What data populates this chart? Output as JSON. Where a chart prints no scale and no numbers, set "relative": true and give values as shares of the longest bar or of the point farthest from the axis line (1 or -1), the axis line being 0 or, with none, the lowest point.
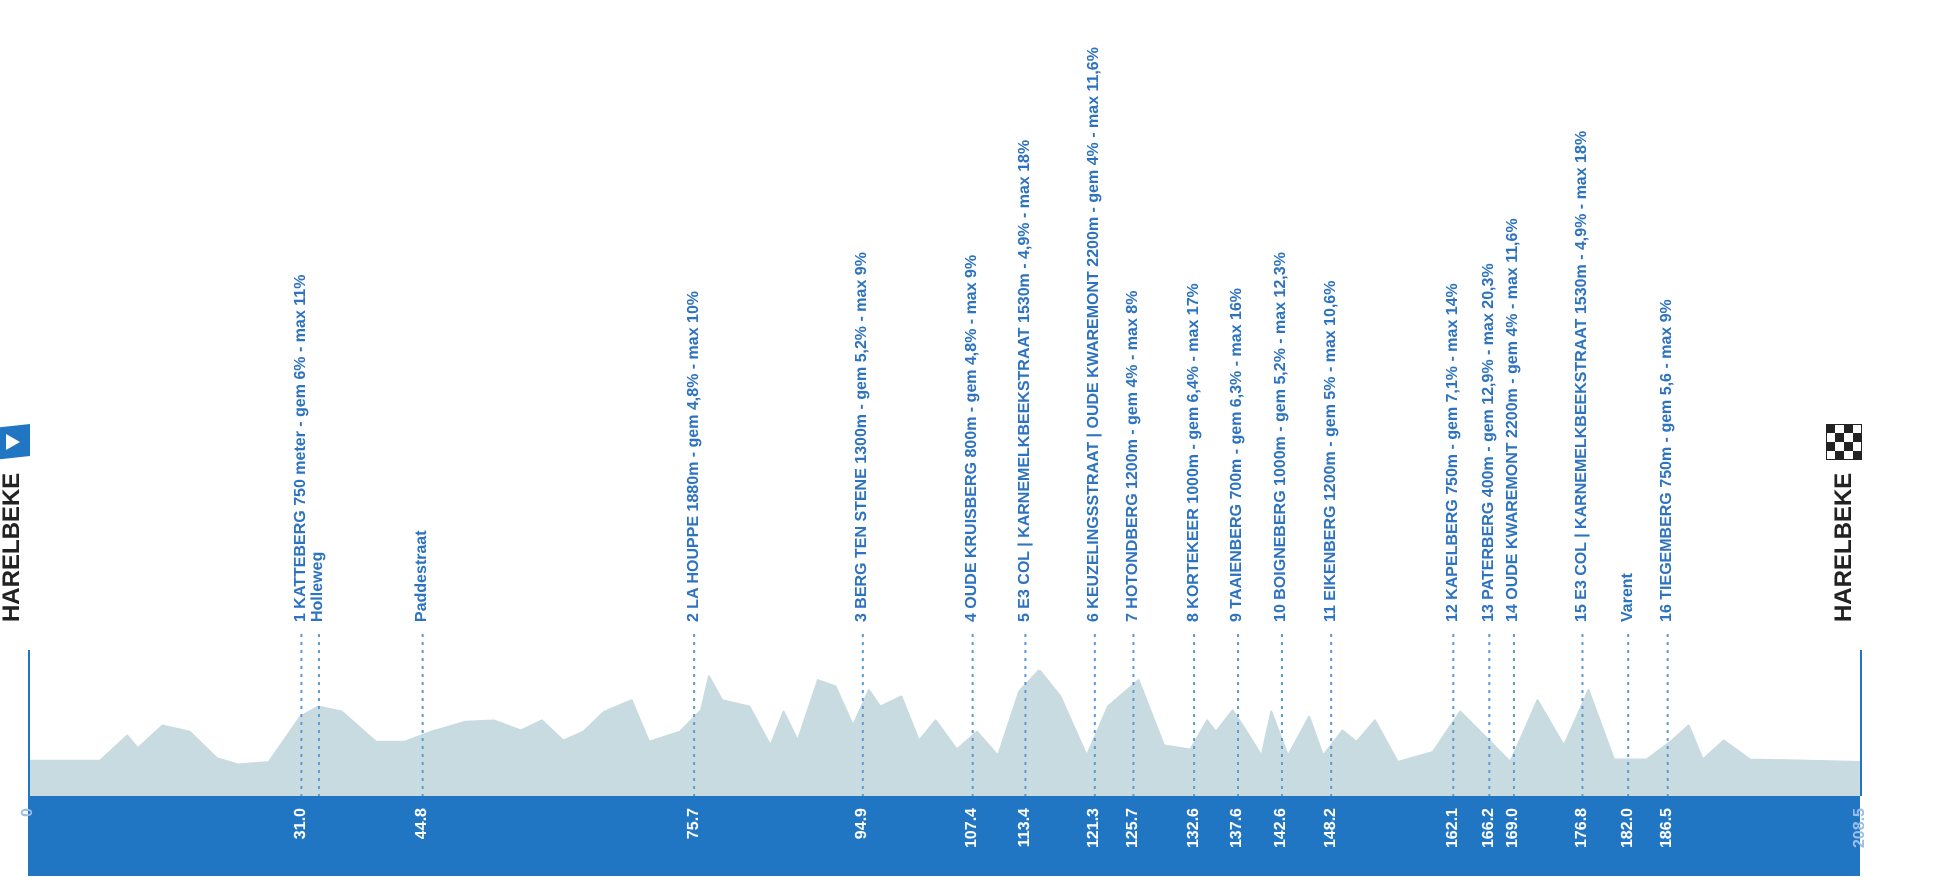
{
  "chart_data": {
    "type": "area",
    "relative": true,
    "legend": false,
    "grid": false,
    "xlim": [
      0,
      208.5
    ],
    "xticks": [
      0,
      {
        "value": 31,
        "label": "31.0"
      },
      {
        "value": 44.8,
        "label": "44.8"
      },
      {
        "value": 75.7,
        "label": "75.7"
      },
      {
        "value": 94.9,
        "label": "94.9"
      },
      {
        "value": 107.4,
        "label": "107.4"
      },
      {
        "value": 113.4,
        "label": "113.4"
      },
      {
        "value": 121.3,
        "label": "121.3"
      },
      {
        "value": 125.7,
        "label": "125.7"
      },
      {
        "value": 132.6,
        "label": "132.6"
      },
      {
        "value": 137.6,
        "label": "137.6"
      },
      {
        "value": 142.6,
        "label": "142.6"
      },
      {
        "value": 148.2,
        "label": "148.2"
      },
      {
        "value": 162.1,
        "label": "162.1"
      },
      {
        "value": 166.2,
        "label": "166.2"
      },
      {
        "value": 169,
        "label": "169.0"
      },
      {
        "value": 176.8,
        "label": "176.8"
      },
      {
        "value": 182,
        "label": "182.0"
      },
      {
        "value": 186.5,
        "label": "186.5"
      },
      208.5
    ],
    "series": [
      {
        "color": "#c8dbe0",
        "x": [
          0,
          8.2,
          11.3,
          12.5,
          15.3,
          18.4,
          21.5,
          23.9,
          27.4,
          31.0,
          33.0,
          35.7,
          39.6,
          42.8,
          45.9,
          49.8,
          53.0,
          56.1,
          58.5,
          60.9,
          63.2,
          65.6,
          68.7,
          70.7,
          74.2,
          76.6,
          77.5,
          79.0,
          82.1,
          84.5,
          86.0,
          87.6,
          89.9,
          91.9,
          93.9,
          95.7,
          97.0,
          99.4,
          101.4,
          103.3,
          105.7,
          108.0,
          110.4,
          112.8,
          115.1,
          117.5,
          120.5,
          122.9,
          126.4,
          129.3,
          132.3,
          134.2,
          135.2,
          137.1,
          138.7,
          140.4,
          141.5,
          143.4,
          145.8,
          147.4,
          149.6,
          151.2,
          153.3,
          155.9,
          159.9,
          163.0,
          166.3,
          168.7,
          171.8,
          174.8,
          177.6,
          180.5,
          184.2,
          187.1,
          189.0,
          190.6,
          193.0,
          196.0,
          208.5
        ],
        "values": [
          0.28,
          0.28,
          0.48,
          0.38,
          0.56,
          0.51,
          0.3,
          0.25,
          0.27,
          0.63,
          0.71,
          0.67,
          0.43,
          0.43,
          0.51,
          0.59,
          0.6,
          0.52,
          0.6,
          0.44,
          0.51,
          0.67,
          0.76,
          0.43,
          0.51,
          0.68,
          0.95,
          0.76,
          0.71,
          0.4,
          0.67,
          0.44,
          0.92,
          0.87,
          0.56,
          0.84,
          0.71,
          0.79,
          0.44,
          0.6,
          0.37,
          0.51,
          0.32,
          0.83,
          1,
          0.79,
          0.32,
          0.71,
          0.92,
          0.4,
          0.37,
          0.6,
          0.51,
          0.68,
          0.51,
          0.32,
          0.67,
          0.32,
          0.63,
          0.32,
          0.52,
          0.43,
          0.6,
          0.27,
          0.35,
          0.67,
          0.44,
          0.27,
          0.76,
          0.4,
          0.84,
          0.29,
          0.29,
          0.44,
          0.56,
          0.29,
          0.44,
          0.29,
          0.27
        ]
      }
    ],
    "ref_lines": [
      {
        "axis": "x",
        "value": 0,
        "label": "HARELBEKE",
        "line_style": "solid"
      },
      {
        "axis": "x",
        "value": 31.0,
        "label": "1 KATTEBERG 750 meter - gem 6% - max 11%",
        "line_style": "dotted"
      },
      {
        "axis": "x",
        "value": 33.0,
        "label": "Holleweg",
        "line_style": "dotted"
      },
      {
        "axis": "x",
        "value": 44.8,
        "label": "Paddestraat",
        "line_style": "dotted"
      },
      {
        "axis": "x",
        "value": 75.7,
        "label": "2 LA HOUPPE 1880m - gem 4,8% - max 10%",
        "line_style": "dotted"
      },
      {
        "axis": "x",
        "value": 94.9,
        "label": "3 BERG TEN STENE 1300m - gem 5,2% - max 9%",
        "line_style": "dotted"
      },
      {
        "axis": "x",
        "value": 107.4,
        "label": "4 OUDE KRUISBERG 800m - gem 4,8% - max 9%",
        "line_style": "dotted"
      },
      {
        "axis": "x",
        "value": 113.4,
        "label": "5 E3 COL | KARNEMELKBEEKSTRAAT 1530m - 4,9% - max 18%",
        "line_style": "dotted"
      },
      {
        "axis": "x",
        "value": 121.3,
        "label": "6 KEUZELINGSSTRAAT | OUDE KWAREMONT 2200m - gem 4% - max 11,6%",
        "line_style": "dotted"
      },
      {
        "axis": "x",
        "value": 125.7,
        "label": "7 HOTONDBERG 1200m - gem 4% - max 8%",
        "line_style": "dotted"
      },
      {
        "axis": "x",
        "value": 132.6,
        "label": "8 KORTEKEER 1000m - gem 6,4% - max 17%",
        "line_style": "dotted"
      },
      {
        "axis": "x",
        "value": 137.6,
        "label": "9 TAAIENBERG 700m - gem 6,3% - max 16%",
        "line_style": "dotted"
      },
      {
        "axis": "x",
        "value": 142.6,
        "label": "10 BOIGNEBERG 1000m - gem 5,2% - max 12,3%",
        "line_style": "dotted"
      },
      {
        "axis": "x",
        "value": 148.2,
        "label": "11 EIKENBERG 1200m - gem 5% - max 10,6%",
        "line_style": "dotted"
      },
      {
        "axis": "x",
        "value": 162.1,
        "label": "12 KAPELBERG 750m - gem 7,1% - max 14%",
        "line_style": "dotted"
      },
      {
        "axis": "x",
        "value": 166.2,
        "label": "13 PATERBERG 400m - gem 12,9% - max 20,3%",
        "line_style": "dotted"
      },
      {
        "axis": "x",
        "value": 169,
        "label": "14 OUDE KWAREMONT 2200m - gem 4% - max 11,6%",
        "line_style": "dotted"
      },
      {
        "axis": "x",
        "value": 176.8,
        "label": "15 E3 COL | KARNEMELKBEEKSTRAAT 1530m - 4,9% - max 18%",
        "line_style": "dotted"
      },
      {
        "axis": "x",
        "value": 182,
        "label": "Varent",
        "line_style": "dotted"
      },
      {
        "axis": "x",
        "value": 186.5,
        "label": "16 TIEGEMBERG 750m - gem 5,6 - max 9%",
        "line_style": "dotted"
      },
      {
        "axis": "x",
        "value": 208.5,
        "label": "HARELBEKE",
        "line_style": "solid"
      }
    ]
  }
}
